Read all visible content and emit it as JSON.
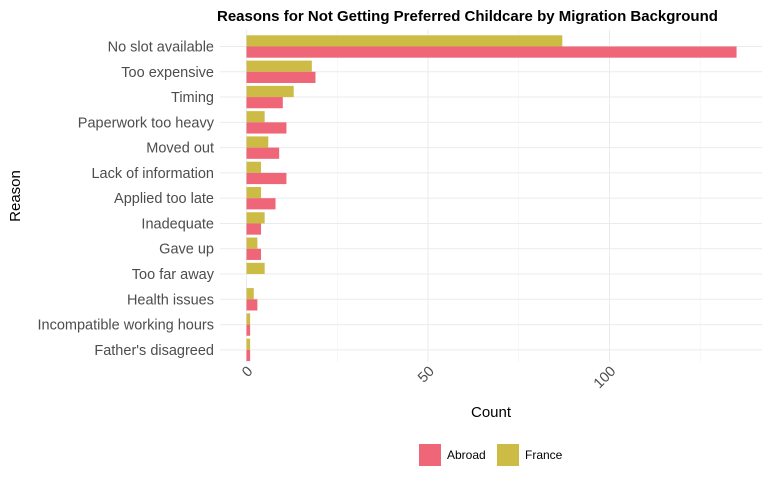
{
  "chart_data": {
    "type": "bar",
    "orientation": "horizontal",
    "title": "Reasons for Not Getting Preferred Childcare by Migration Background",
    "xlabel": "Count",
    "ylabel": "Reason",
    "xlim": [
      0,
      135
    ],
    "x_ticks": [
      0,
      50,
      100
    ],
    "grid": true,
    "legend_position": "bottom",
    "categories": [
      "No slot available",
      "Too expensive",
      "Timing",
      "Paperwork too heavy",
      "Moved out",
      "Lack of information",
      "Applied too late",
      "Inadequate",
      "Gave up",
      "Too far away",
      "Health issues",
      "Incompatible working hours",
      "Father's disagreed"
    ],
    "series": [
      {
        "name": "Abroad",
        "color": "#ee6677",
        "values": [
          135,
          19,
          10,
          11,
          9,
          11,
          8,
          4,
          4,
          0,
          3,
          1,
          1
        ]
      },
      {
        "name": "France",
        "color": "#ccbb44",
        "values": [
          87,
          18,
          13,
          5,
          6,
          4,
          4,
          5,
          3,
          5,
          2,
          1,
          1
        ]
      }
    ]
  }
}
